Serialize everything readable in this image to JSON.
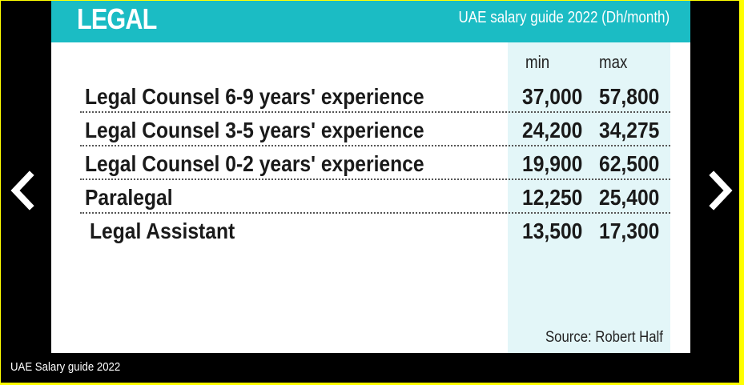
{
  "slide": {
    "title": "LEGAL",
    "subtitle": "UAE salary guide 2022 (Dh/month)",
    "columns": {
      "min": "min",
      "max": "max"
    },
    "rows": [
      {
        "label": "Legal Counsel 6-9 years' experience",
        "min": "37,000",
        "max": "57,800"
      },
      {
        "label": "Legal Counsel 3-5 years' experience",
        "min": "24,200",
        "max": "34,275"
      },
      {
        "label": "Legal Counsel 0-2 years' experience",
        "min": "19,900",
        "max": "62,500"
      },
      {
        "label": "Paralegal",
        "min": "12,250",
        "max": "25,400"
      },
      {
        "label": "Legal Assistant",
        "min": "13,500",
        "max": "17,300"
      }
    ],
    "source": "Source: Robert Half"
  },
  "caption": "UAE Salary guide 2022",
  "navigation": {
    "prev_icon": "chevron-left-icon",
    "next_icon": "chevron-right-icon"
  },
  "colors": {
    "header": "#1bbcc4",
    "highlight": "#e3f6f8",
    "border": "#ffff00",
    "frame": "#000000"
  }
}
